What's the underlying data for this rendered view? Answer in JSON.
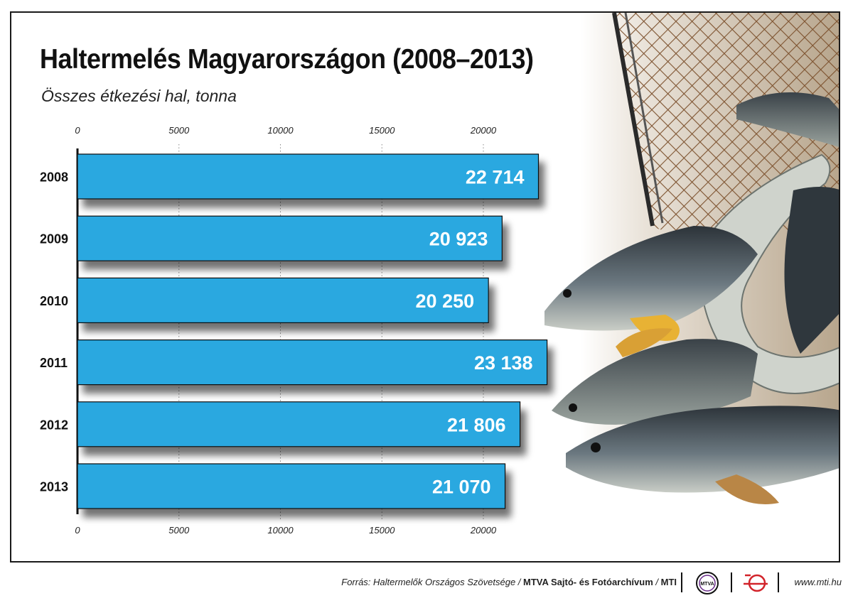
{
  "title": "Haltermelés Magyarországon (2008–2013)",
  "subtitle": "Összes étkezési hal, tonna",
  "footer": {
    "source_prefix": "Forrás: Haltermelők Országos Szövetsége / ",
    "source_archive": "MTVA Sajtó- és Fotóarchívum",
    "source_sep": " / ",
    "source_mti": "MTI",
    "logo1_text": "MTVA",
    "url": "www.mti.hu"
  },
  "colors": {
    "bar": "#29a8e0",
    "bar_border": "#111111",
    "value_text": "#ffffff",
    "accent_red": "#d2232a"
  },
  "chart_data": {
    "type": "bar",
    "orientation": "horizontal",
    "categories": [
      "2008",
      "2009",
      "2010",
      "2011",
      "2012",
      "2013"
    ],
    "values": [
      22714,
      20923,
      20250,
      23138,
      21806,
      21070
    ],
    "value_labels": [
      "22 714",
      "20 923",
      "20 250",
      "23 138",
      "21 806",
      "21 070"
    ],
    "x_ticks": [
      "0",
      "5000",
      "10000",
      "15000",
      "20000"
    ],
    "xlim": [
      0,
      23500
    ],
    "grid": "dotted vertical",
    "title": "Haltermelés Magyarországon (2008–2013)",
    "subtitle": "Összes étkezési hal, tonna"
  }
}
